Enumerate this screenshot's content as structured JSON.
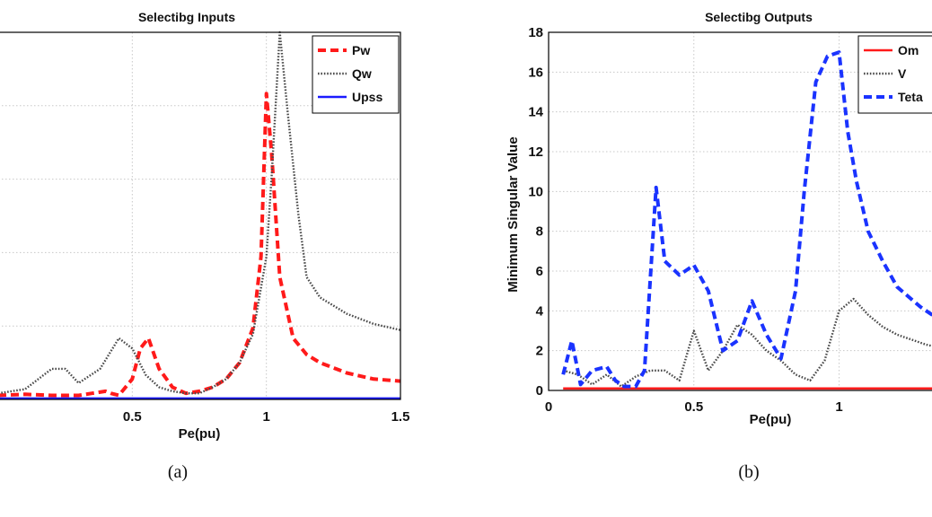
{
  "chart_data": [
    {
      "type": "line",
      "panel_caption": "(a)",
      "title": "Selectibg Inputs",
      "xlabel": "Pe(pu)",
      "ylabel": "",
      "xlim": [
        0,
        1.5
      ],
      "ylim": [
        0,
        18
      ],
      "x_tick_labels": [
        "0.5",
        "1",
        "1.5"
      ],
      "x_ticks": [
        0.5,
        1,
        1.5
      ],
      "y_ticks": [
        0,
        3.6,
        7.2,
        10.8,
        14.4
      ],
      "grid": true,
      "legend_position": "top-right",
      "series": [
        {
          "name": "Pw",
          "color": "#ff1a1a",
          "style": "dashed",
          "x": [
            0.0,
            0.1,
            0.2,
            0.3,
            0.35,
            0.4,
            0.42,
            0.45,
            0.5,
            0.53,
            0.56,
            0.6,
            0.65,
            0.7,
            0.75,
            0.8,
            0.85,
            0.9,
            0.95,
            0.98,
            1.0,
            1.02,
            1.05,
            1.1,
            1.15,
            1.2,
            1.3,
            1.4,
            1.5
          ],
          "y": [
            0.2,
            0.25,
            0.2,
            0.2,
            0.3,
            0.4,
            0.3,
            0.2,
            1.0,
            2.5,
            3.0,
            1.5,
            0.6,
            0.3,
            0.4,
            0.6,
            1.0,
            1.8,
            3.5,
            7.0,
            15.0,
            12.0,
            6.0,
            3.0,
            2.2,
            1.8,
            1.3,
            1.0,
            0.9
          ]
        },
        {
          "name": "Qw",
          "color": "#4a4a4a",
          "style": "dotted",
          "x": [
            0.0,
            0.1,
            0.2,
            0.25,
            0.3,
            0.38,
            0.45,
            0.5,
            0.55,
            0.6,
            0.65,
            0.7,
            0.75,
            0.8,
            0.85,
            0.9,
            0.95,
            1.0,
            1.02,
            1.05,
            1.08,
            1.12,
            1.15,
            1.2,
            1.3,
            1.4,
            1.5
          ],
          "y": [
            0.3,
            0.5,
            1.5,
            1.5,
            0.8,
            1.5,
            3.0,
            2.5,
            1.2,
            0.6,
            0.4,
            0.3,
            0.3,
            0.6,
            1.0,
            1.8,
            3.2,
            7.0,
            11.0,
            18.0,
            14.0,
            9.0,
            6.0,
            5.0,
            4.2,
            3.7,
            3.4
          ]
        },
        {
          "name": "Upss",
          "color": "#1a1aff",
          "style": "solid",
          "x": [
            0.0,
            0.5,
            1.0,
            1.5
          ],
          "y": [
            0.05,
            0.05,
            0.05,
            0.05
          ]
        }
      ]
    },
    {
      "type": "line",
      "panel_caption": "(b)",
      "title": "Selectibg Outputs",
      "xlabel": "Pe(pu)",
      "ylabel": "Minimum Singular Value",
      "xlim": [
        0,
        1.36
      ],
      "ylim": [
        0,
        18
      ],
      "x_tick_labels": [
        "0",
        "0.5",
        "1"
      ],
      "x_ticks": [
        0,
        0.5,
        1
      ],
      "y_tick_labels": [
        "0",
        "2",
        "4",
        "6",
        "8",
        "10",
        "12",
        "14",
        "16",
        "18"
      ],
      "y_ticks": [
        0,
        2,
        4,
        6,
        8,
        10,
        12,
        14,
        16,
        18
      ],
      "grid": true,
      "legend_position": "top-right",
      "series": [
        {
          "name": "Om",
          "color": "#ff1a1a",
          "style": "solid",
          "x": [
            0.05,
            0.5,
            1.0,
            1.36
          ],
          "y": [
            0.1,
            0.1,
            0.1,
            0.1
          ]
        },
        {
          "name": "V",
          "color": "#4a4a4a",
          "style": "dotted",
          "x": [
            0.05,
            0.1,
            0.15,
            0.2,
            0.25,
            0.3,
            0.35,
            0.4,
            0.45,
            0.5,
            0.55,
            0.6,
            0.65,
            0.7,
            0.75,
            0.8,
            0.85,
            0.9,
            0.95,
            1.0,
            1.05,
            1.1,
            1.15,
            1.2,
            1.3,
            1.36
          ],
          "y": [
            1.0,
            0.8,
            0.3,
            0.8,
            0.2,
            0.7,
            1.0,
            1.0,
            0.5,
            3.0,
            1.0,
            2.0,
            3.3,
            2.8,
            2.0,
            1.5,
            0.8,
            0.5,
            1.5,
            4.0,
            4.6,
            3.8,
            3.2,
            2.8,
            2.3,
            2.1
          ]
        },
        {
          "name": "Teta",
          "color": "#1a33ff",
          "style": "dashed",
          "x": [
            0.05,
            0.08,
            0.11,
            0.15,
            0.2,
            0.23,
            0.26,
            0.3,
            0.33,
            0.37,
            0.4,
            0.45,
            0.5,
            0.55,
            0.6,
            0.65,
            0.7,
            0.75,
            0.8,
            0.85,
            0.88,
            0.92,
            0.96,
            1.0,
            1.03,
            1.06,
            1.1,
            1.15,
            1.2,
            1.28,
            1.36
          ],
          "y": [
            0.8,
            2.5,
            0.3,
            1.0,
            1.2,
            0.5,
            0.2,
            0.2,
            1.0,
            10.2,
            6.5,
            5.8,
            6.3,
            5.0,
            2.0,
            2.5,
            4.5,
            2.8,
            1.6,
            5.0,
            10.0,
            15.5,
            16.8,
            17.0,
            13.0,
            10.5,
            8.0,
            6.5,
            5.2,
            4.2,
            3.4
          ]
        }
      ]
    }
  ]
}
